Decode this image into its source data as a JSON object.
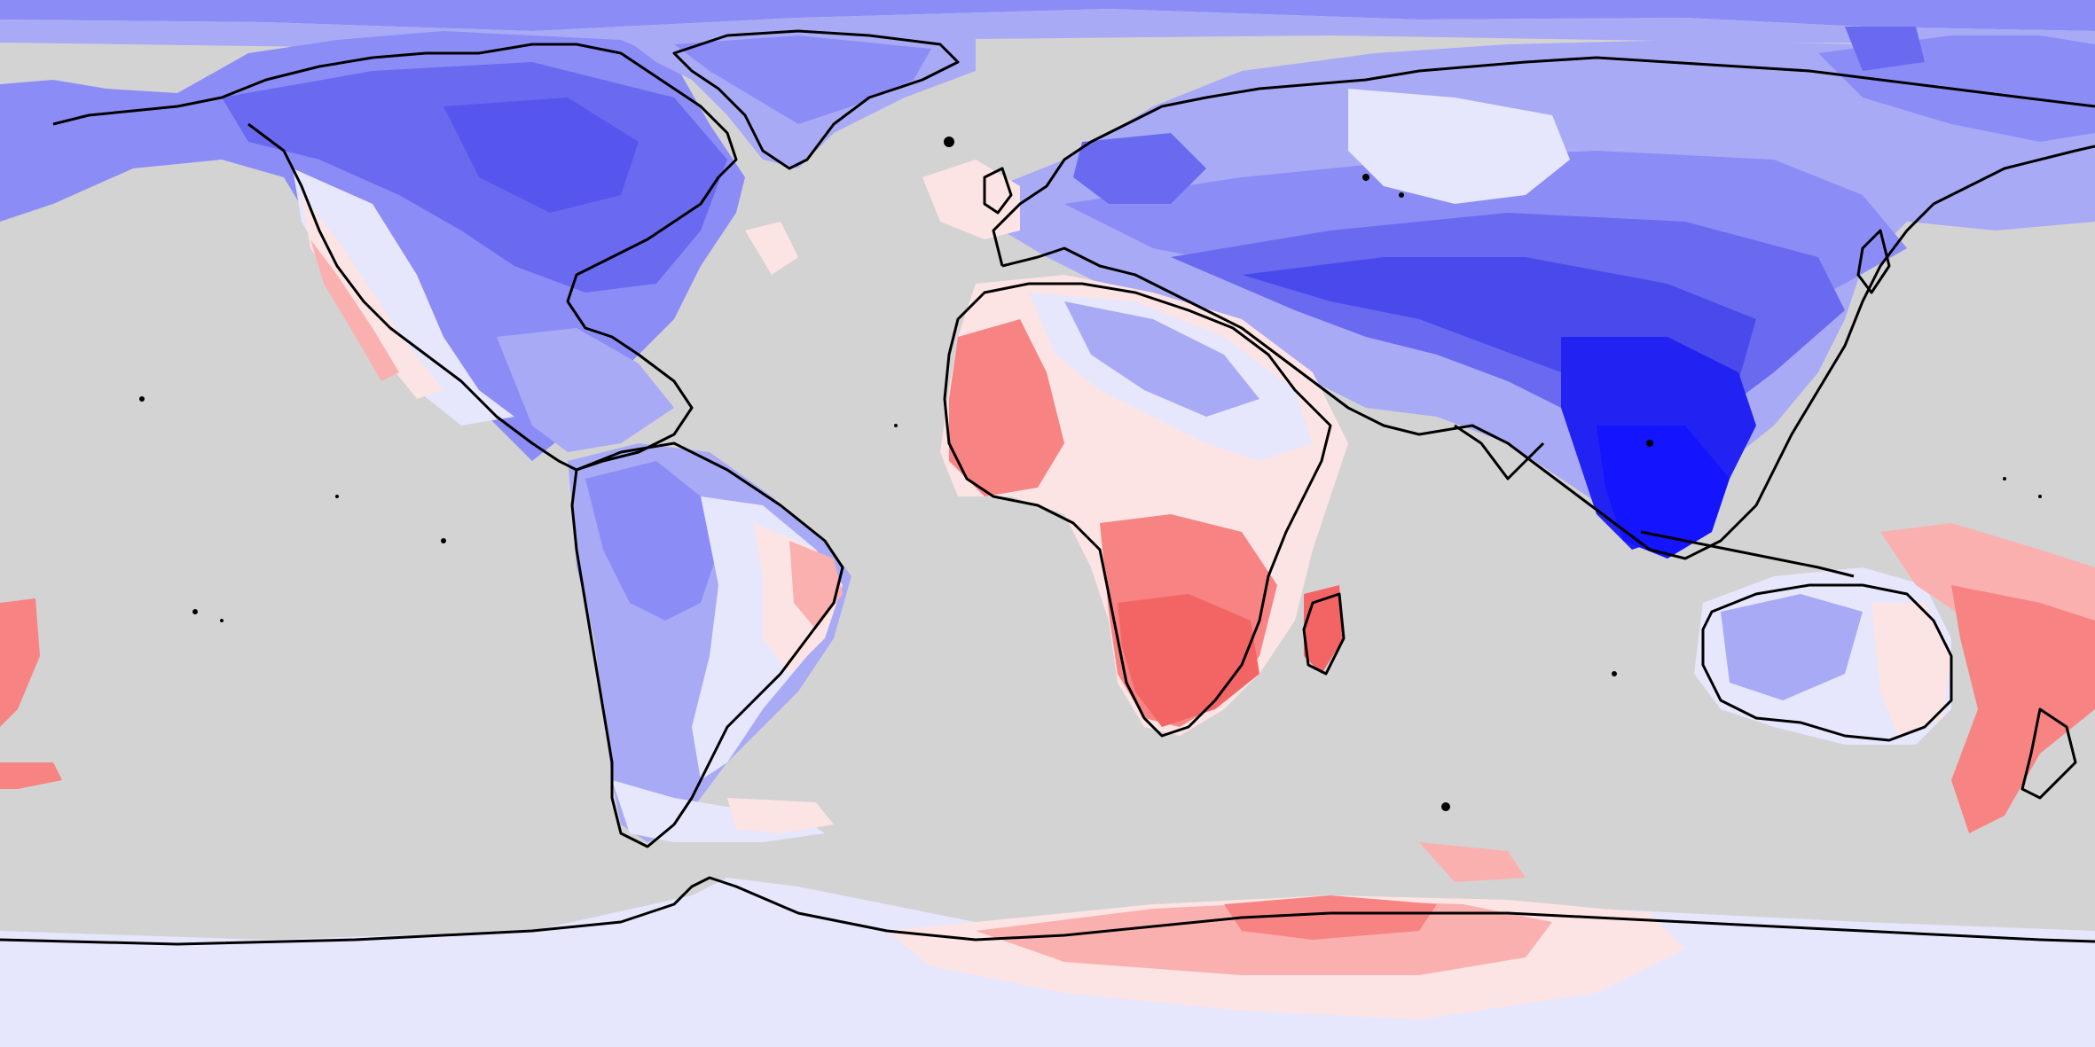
{
  "map": {
    "projection": "equirectangular",
    "extent": {
      "lon": [
        -180,
        180
      ],
      "lat": [
        -90,
        90
      ]
    },
    "ocean_color": "#d3d3d3",
    "coastline_color": "#000000",
    "colormap": {
      "type": "diverging",
      "negative_strong": "#1414ff",
      "negative_mid": "#6a6af0",
      "negative_light": "#a9aaf5",
      "negative_faint": "#e6e6fd",
      "positive_faint": "#fde4e4",
      "positive_light": "#fbb0b0",
      "positive_mid": "#f88383",
      "positive_strong": "#f36565"
    },
    "legend": "none",
    "title": ""
  }
}
